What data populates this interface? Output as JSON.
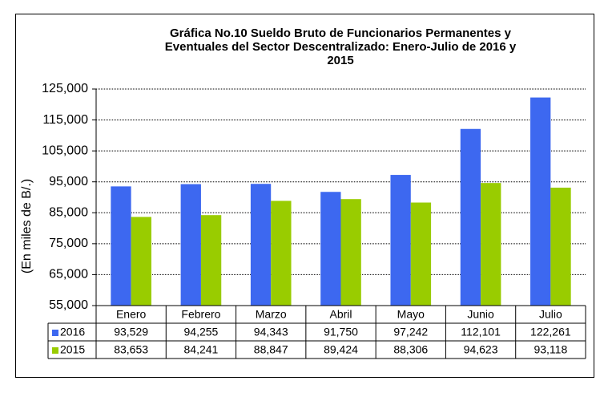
{
  "chart_data": {
    "type": "bar",
    "title": [
      "Gráfica No.10 Sueldo Bruto de Funcionarios Permanentes y",
      "Eventuales del Sector Descentralizado: Enero-Julio de 2016 y",
      "2015"
    ],
    "y_label": "(En miles de B/.)",
    "categories": [
      "Enero",
      "Febrero",
      "Marzo",
      "Abril",
      "Mayo",
      "Junio",
      "Julio"
    ],
    "series": [
      {
        "name": "2016",
        "color": "#3d68f0",
        "values": [
          93529,
          94255,
          94343,
          91750,
          97242,
          112101,
          122261
        ],
        "value_labels": [
          "93,529",
          "94,255",
          "94,343",
          "91,750",
          "97,242",
          "112,101",
          "122,261"
        ]
      },
      {
        "name": "2015",
        "color": "#99cc00",
        "values": [
          83653,
          84241,
          88847,
          89424,
          88306,
          94623,
          93118
        ],
        "value_labels": [
          "83,653",
          "84,241",
          "88,847",
          "89,424",
          "88,306",
          "94,623",
          "93,118"
        ]
      }
    ],
    "ylim": [
      55000,
      125000
    ],
    "yticks": [
      {
        "value": 55000,
        "label": "55,000"
      },
      {
        "value": 65000,
        "label": "65,000"
      },
      {
        "value": 75000,
        "label": "75,000"
      },
      {
        "value": 85000,
        "label": "85,000"
      },
      {
        "value": 95000,
        "label": "95,000"
      },
      {
        "value": 105000,
        "label": "105,000"
      },
      {
        "value": 115000,
        "label": "115,000"
      },
      {
        "value": 125000,
        "label": "125,000"
      }
    ],
    "grid": true,
    "legend": "table"
  }
}
